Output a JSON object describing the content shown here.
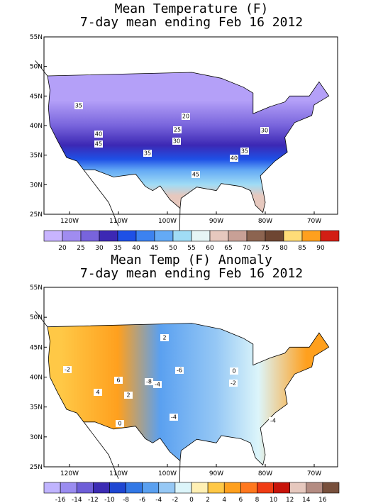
{
  "panels": [
    {
      "title": [
        "Mean Temperature (F)",
        "7-day mean ending Feb 16 2012"
      ],
      "lat_labels": [
        "55N",
        "50N",
        "45N",
        "40N",
        "35N",
        "30N",
        "25N"
      ],
      "lon_labels": [
        "120W",
        "110W",
        "100W",
        "90W",
        "80W",
        "70W"
      ],
      "colorbar": {
        "levels": [
          20,
          25,
          30,
          35,
          40,
          45,
          50,
          55,
          60,
          65,
          70,
          75,
          80,
          85,
          90
        ],
        "colors": [
          "#c8b4ff",
          "#a08cf0",
          "#7864dc",
          "#3c28b4",
          "#1e50e6",
          "#3c82f0",
          "#64aaf5",
          "#a0dcf5",
          "#e6f5f5",
          "#e6c8be",
          "#c8a096",
          "#8c6450",
          "#6e4632",
          "#ffdc78",
          "#ffa01e",
          "#d21e14"
        ]
      },
      "contour_labels": [
        "35",
        "20",
        "25",
        "30",
        "40",
        "45",
        "35",
        "40",
        "30",
        "35",
        "45"
      ]
    },
    {
      "title": [
        "Mean Temp (F) Anomaly",
        "7-day mean ending Feb 16 2012"
      ],
      "lat_labels": [
        "55N",
        "50N",
        "45N",
        "40N",
        "35N",
        "30N",
        "25N"
      ],
      "lon_labels": [
        "120W",
        "110W",
        "100W",
        "90W",
        "80W",
        "70W"
      ],
      "colorbar": {
        "levels": [
          -16,
          -14,
          -12,
          -10,
          -8,
          -6,
          -4,
          -2,
          0,
          2,
          4,
          6,
          8,
          10,
          12,
          14,
          16
        ],
        "colors": [
          "#c0b4ff",
          "#9a8cf0",
          "#6e5ed8",
          "#3c2cb4",
          "#1e46d2",
          "#3278e6",
          "#5aa0f0",
          "#96c8f5",
          "#dcf5fa",
          "#fff0b4",
          "#ffc846",
          "#ffa01e",
          "#ff781e",
          "#f03c14",
          "#c8140a",
          "#e6c8be",
          "#b48c82",
          "#78503c"
        ]
      },
      "contour_labels": [
        "2",
        "-2",
        "6",
        "4",
        "-6",
        "-4",
        "-8",
        "2",
        "-2",
        "0",
        "-4",
        "-4",
        "0"
      ]
    }
  ]
}
